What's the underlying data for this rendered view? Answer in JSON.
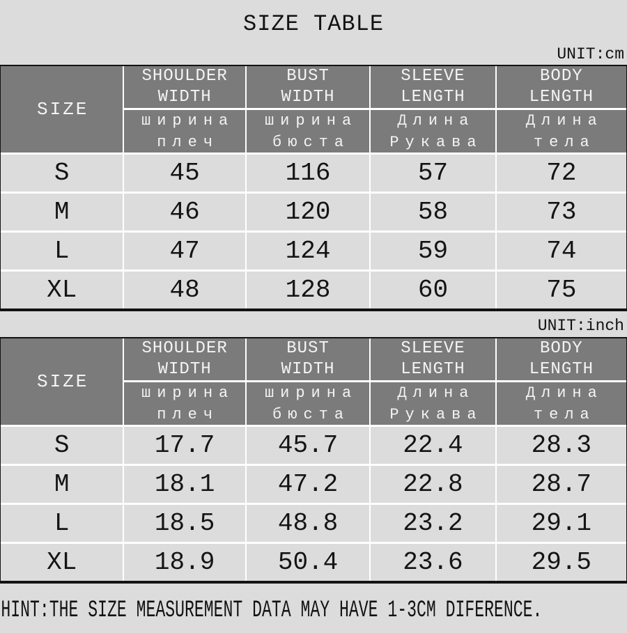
{
  "page": {
    "title": "SIZE TABLE",
    "hint": "HINT:THE SIZE MEASUREMENT DATA MAY HAVE 1-3CM DIFERENCE."
  },
  "colors": {
    "page_bg": "#dcdcdc",
    "header_cell_bg": "#7b7b7b",
    "header_cell_text": "#f4f4f4",
    "data_cell_bg": "#dcdcdc",
    "grid_line": "#ffffff",
    "table_border": "#121212",
    "text": "#141414"
  },
  "chart_data": [
    {
      "type": "table",
      "unit_label": "UNIT:cm",
      "corner_label": "SIZE",
      "headers": [
        {
          "en": [
            "SHOULDER",
            "WIDTH"
          ],
          "ru": [
            "ширина",
            "плеч"
          ]
        },
        {
          "en": [
            "BUST",
            "WIDTH"
          ],
          "ru": [
            "ширина",
            "бюста"
          ]
        },
        {
          "en": [
            "SLEEVE",
            "LENGTH"
          ],
          "ru": [
            "Длина",
            "Рукава"
          ]
        },
        {
          "en": [
            "BODY",
            "LENGTH"
          ],
          "ru": [
            "Длина",
            "тела"
          ]
        }
      ],
      "rows": [
        {
          "size": "S",
          "values": [
            "45",
            "116",
            "57",
            "72"
          ]
        },
        {
          "size": "M",
          "values": [
            "46",
            "120",
            "58",
            "73"
          ]
        },
        {
          "size": "L",
          "values": [
            "47",
            "124",
            "59",
            "74"
          ]
        },
        {
          "size": "XL",
          "values": [
            "48",
            "128",
            "60",
            "75"
          ]
        }
      ]
    },
    {
      "type": "table",
      "unit_label": "UNIT:inch",
      "corner_label": "SIZE",
      "headers": [
        {
          "en": [
            "SHOULDER",
            "WIDTH"
          ],
          "ru": [
            "ширина",
            "плеч"
          ]
        },
        {
          "en": [
            "BUST",
            "WIDTH"
          ],
          "ru": [
            "ширина",
            "бюста"
          ]
        },
        {
          "en": [
            "SLEEVE",
            "LENGTH"
          ],
          "ru": [
            "Длина",
            "Рукава"
          ]
        },
        {
          "en": [
            "BODY",
            "LENGTH"
          ],
          "ru": [
            "Длина",
            "тела"
          ]
        }
      ],
      "rows": [
        {
          "size": "S",
          "values": [
            "17.7",
            "45.7",
            "22.4",
            "28.3"
          ]
        },
        {
          "size": "M",
          "values": [
            "18.1",
            "47.2",
            "22.8",
            "28.7"
          ]
        },
        {
          "size": "L",
          "values": [
            "18.5",
            "48.8",
            "23.2",
            "29.1"
          ]
        },
        {
          "size": "XL",
          "values": [
            "18.9",
            "50.4",
            "23.6",
            "29.5"
          ]
        }
      ]
    }
  ]
}
